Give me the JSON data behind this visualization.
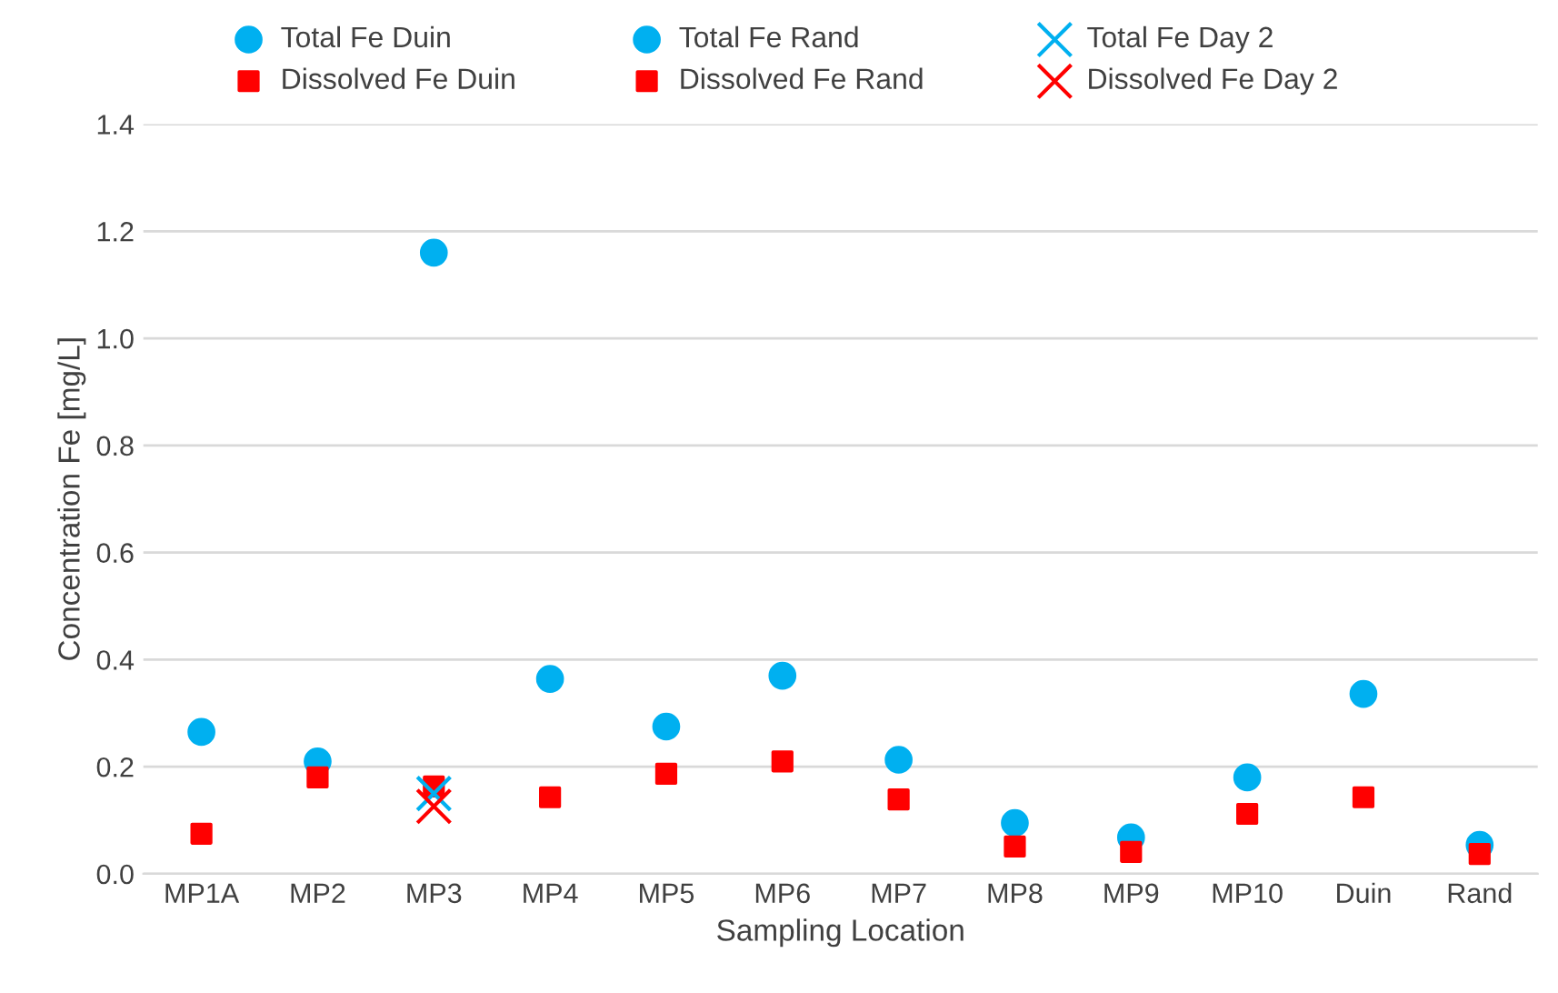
{
  "chart_data": {
    "type": "scatter",
    "xlabel": "Sampling Location",
    "ylabel": "Concentration Fe [mg/L]",
    "categories": [
      "MP1A",
      "MP2",
      "MP3",
      "MP4",
      "MP5",
      "MP6",
      "MP7",
      "MP8",
      "MP9",
      "MP10",
      "Duin",
      "Rand"
    ],
    "series": [
      {
        "name": "Total Fe Duin",
        "color": "#00b0f0",
        "marker": "circle",
        "values": [
          null,
          0.21,
          1.16,
          0.364,
          0.275,
          0.37,
          0.213,
          0.095,
          null,
          0.18,
          0.336,
          null
        ]
      },
      {
        "name": "Total Fe Rand",
        "color": "#00b0f0",
        "marker": "circle",
        "values": [
          0.265,
          null,
          null,
          null,
          null,
          null,
          null,
          null,
          0.068,
          null,
          null,
          0.054
        ]
      },
      {
        "name": "Total Fe Day 2",
        "color": "#00b0f0",
        "marker": "cross",
        "values": [
          null,
          null,
          0.15,
          null,
          null,
          null,
          null,
          null,
          null,
          null,
          null,
          null
        ]
      },
      {
        "name": "Dissolved Fe Duin",
        "color": "#ff0000",
        "marker": "square",
        "values": [
          null,
          0.18,
          0.163,
          0.143,
          0.187,
          0.21,
          0.139,
          0.051,
          null,
          0.112,
          0.143,
          null
        ]
      },
      {
        "name": "Dissolved Fe Rand",
        "color": "#ff0000",
        "marker": "square",
        "values": [
          0.075,
          null,
          null,
          null,
          null,
          null,
          null,
          null,
          0.041,
          null,
          null,
          0.037
        ]
      },
      {
        "name": "Dissolved Fe Day 2",
        "color": "#ff0000",
        "marker": "cross",
        "values": [
          null,
          null,
          0.126,
          null,
          null,
          null,
          null,
          null,
          null,
          null,
          null,
          null
        ]
      }
    ],
    "ylim": [
      0,
      1.4
    ],
    "yticks": [
      {
        "value": 0,
        "label": "0.0"
      },
      {
        "value": 0.2,
        "label": "0.2"
      },
      {
        "value": 0.4,
        "label": "0.4"
      },
      {
        "value": 0.6,
        "label": "0.6"
      },
      {
        "value": 0.8,
        "label": "0.8"
      },
      {
        "value": 1.0,
        "label": "1.0"
      },
      {
        "value": 1.2,
        "label": "1.2"
      },
      {
        "value": 1.4,
        "label": "1.4"
      }
    ],
    "grid": "y",
    "legend": "top"
  }
}
